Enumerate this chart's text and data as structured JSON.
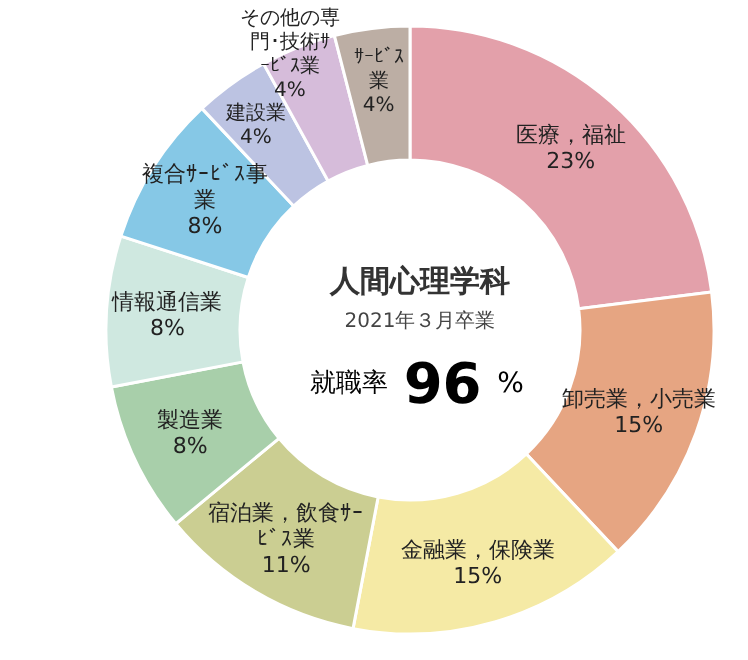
{
  "chart_data": {
    "type": "donut",
    "title": "人間心理学科",
    "subtitle": "2021年３月卒業",
    "categories": [
      "医療，福祉",
      "卸売業，小売業",
      "金融業，保険業",
      "宿泊業，飲食ｻｰﾋﾞｽ業",
      "製造業",
      "情報通信業",
      "複合ｻｰﾋﾞｽ事業",
      "建設業",
      "その他の専門･技術ｻｰﾋﾞｽ業",
      "ｻｰﾋﾞｽ業"
    ],
    "values": [
      23,
      15,
      15,
      11,
      8,
      8,
      8,
      4,
      4,
      4
    ],
    "value_labels": [
      "23%",
      "15%",
      "15%",
      "11%",
      "8%",
      "8%",
      "8%",
      "4%",
      "4%",
      "4%"
    ],
    "colors": [
      "#e3a0aa",
      "#e6a582",
      "#f5eaa5",
      "#cbce92",
      "#a8cfaa",
      "#cfe8e0",
      "#86c8e6",
      "#bcc3e2",
      "#d6bcda",
      "#bcaea4"
    ],
    "annotations": [
      "就職率",
      "96",
      "%"
    ]
  }
}
